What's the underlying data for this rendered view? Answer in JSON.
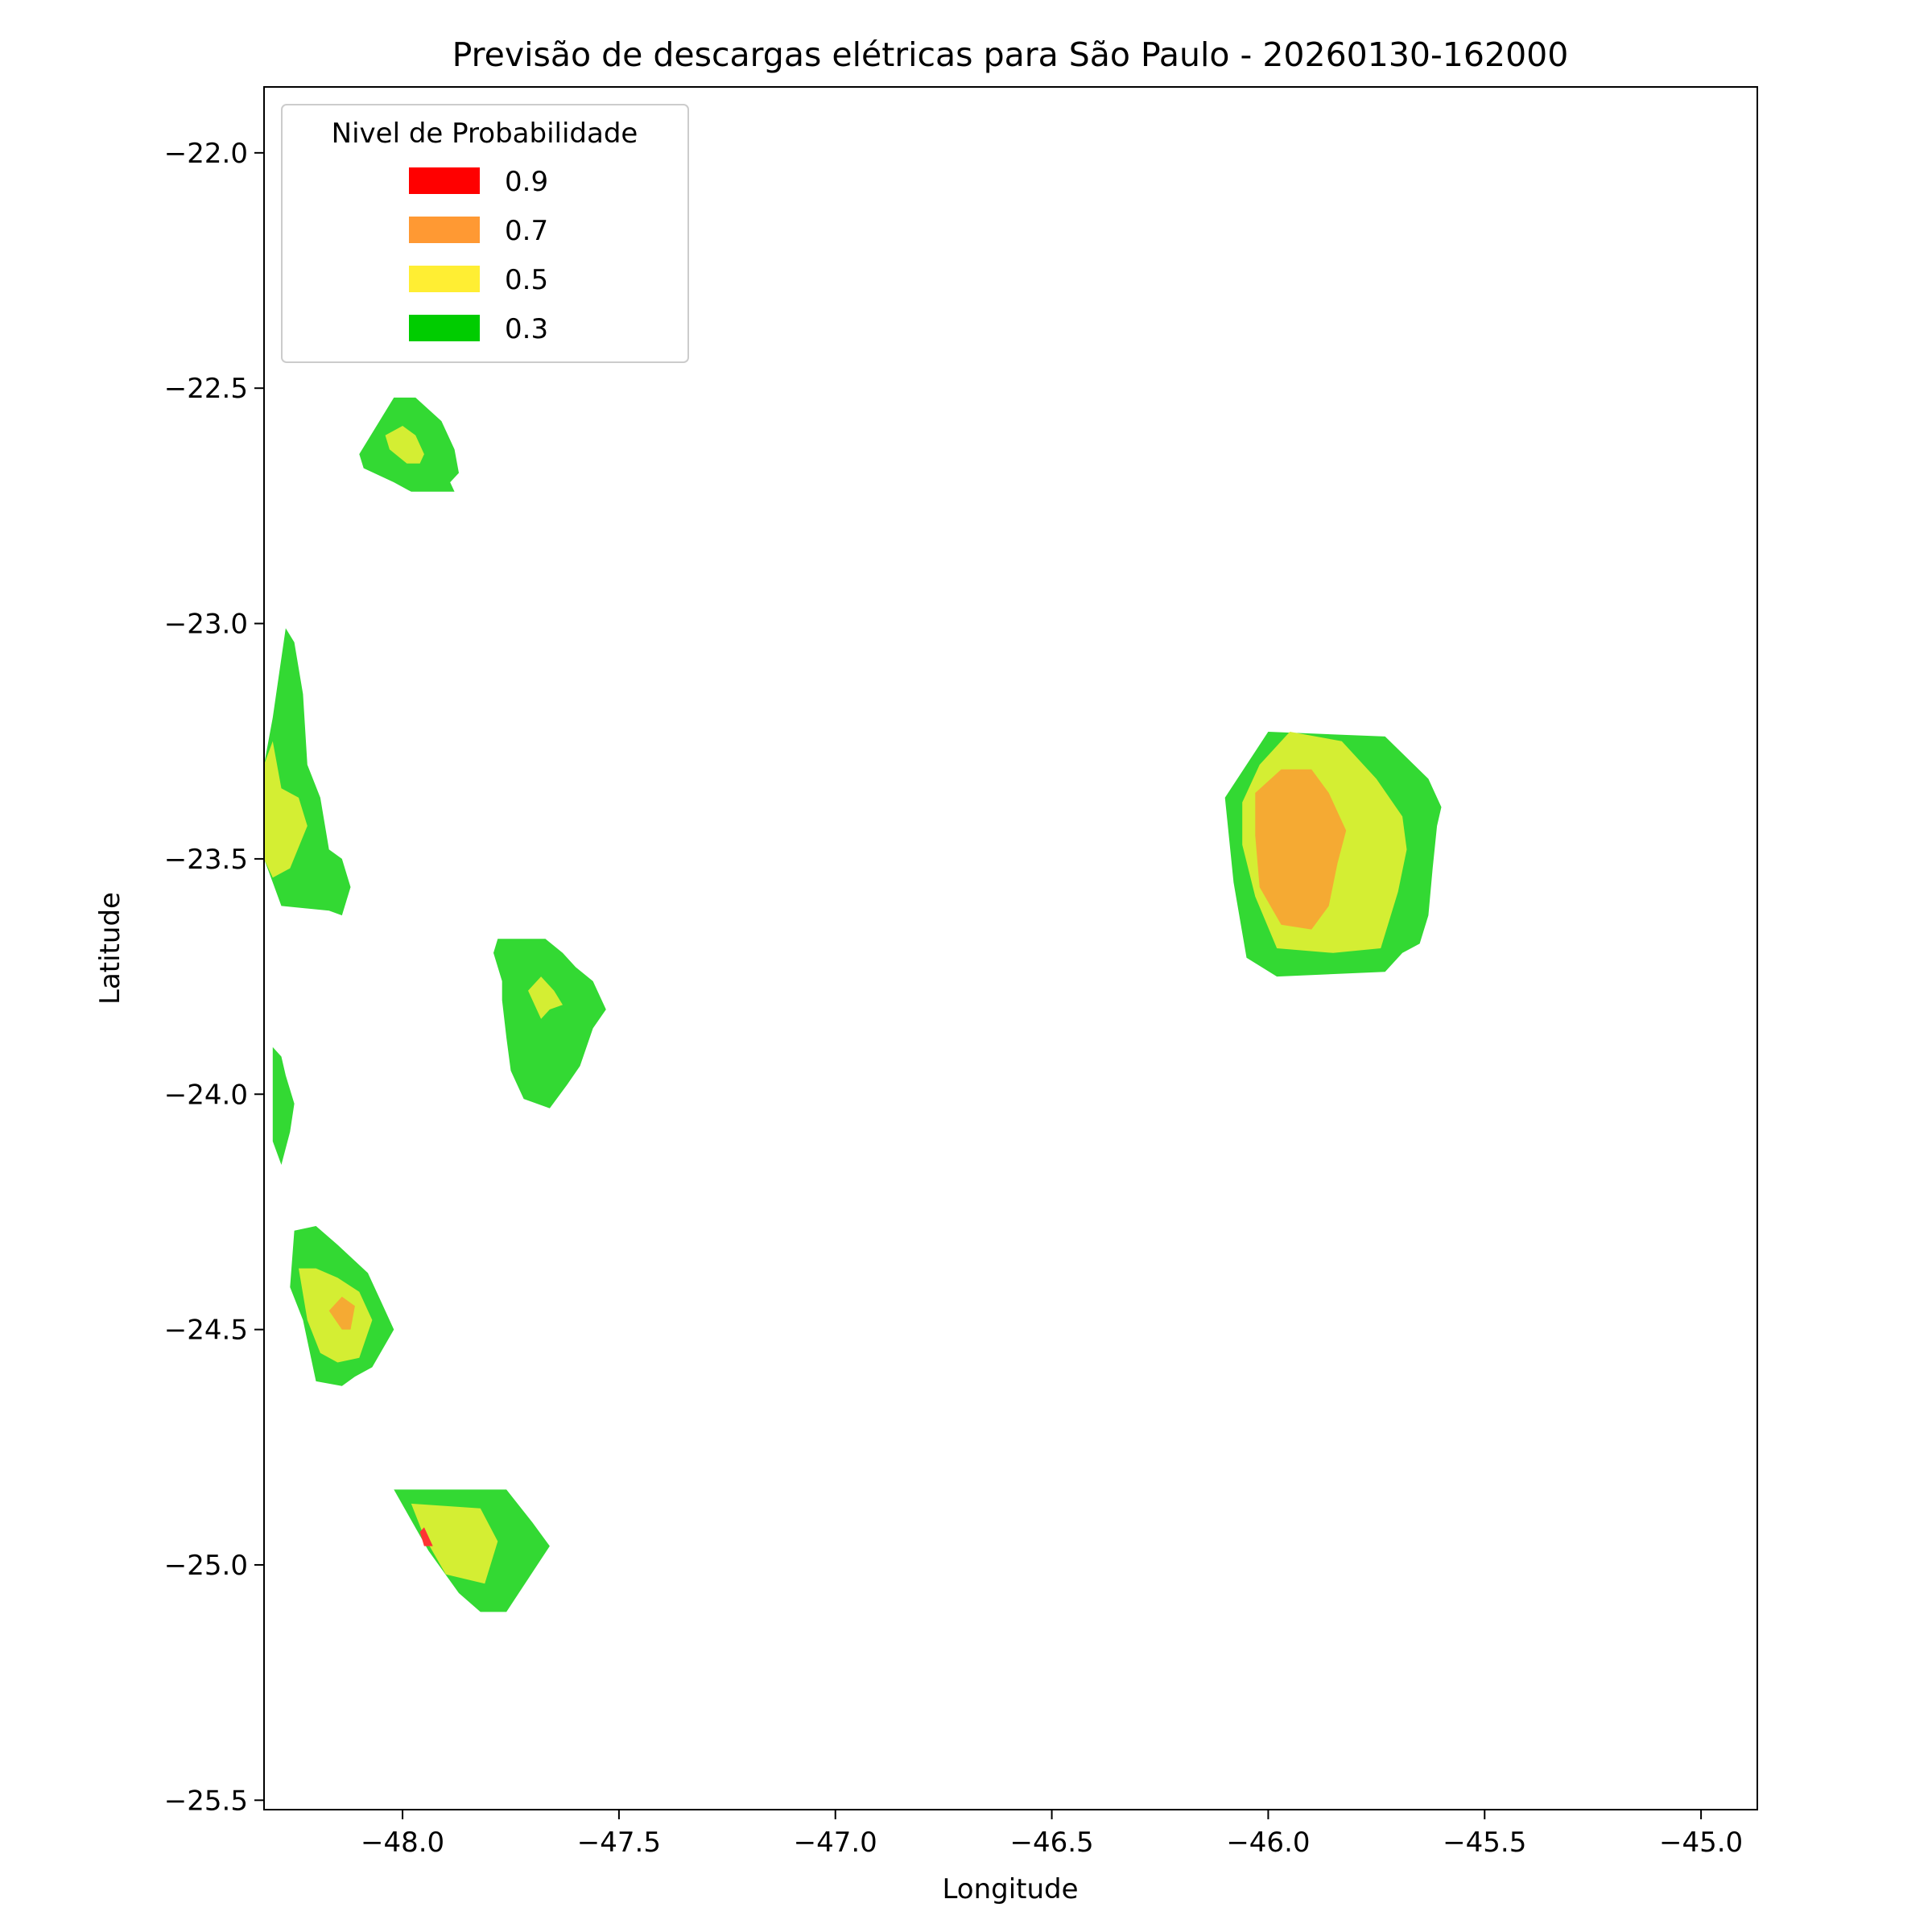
{
  "chart_data": {
    "type": "filled_contour",
    "title": "Previsão de descargas elétricas para São Paulo - 20260130-162000",
    "xlabel": "Longitude",
    "ylabel": "Latitude",
    "xlim": [
      -48.32,
      -44.87
    ],
    "ylim": [
      -25.52,
      -21.86
    ],
    "xticks": [
      -48.0,
      -47.5,
      -47.0,
      -46.5,
      -46.0,
      -45.5,
      -45.0
    ],
    "xtick_labels": [
      "−48.0",
      "−47.5",
      "−47.0",
      "−46.5",
      "−46.0",
      "−45.5",
      "−45.0"
    ],
    "yticks": [
      -22.0,
      -22.5,
      -23.0,
      -23.5,
      -24.0,
      -24.5,
      -25.0,
      -25.5
    ],
    "ytick_labels": [
      "−22.0",
      "−22.5",
      "−23.0",
      "−23.5",
      "−24.0",
      "−24.5",
      "−25.0",
      "−25.5"
    ],
    "grid": false,
    "legend": {
      "title": "Nivel de Probabilidade",
      "position": "top-left",
      "entries": [
        {
          "label": "0.9",
          "color": "#ff0000"
        },
        {
          "label": "0.7",
          "color": "#ff9933"
        },
        {
          "label": "0.5",
          "color": "#ffee33"
        },
        {
          "label": "0.3",
          "color": "#00cc00"
        }
      ]
    },
    "region_colors": {
      "0.3": "#33d933",
      "0.5": "#d4ee33",
      "0.7": "#f5aa33",
      "0.9": "#ff3333"
    },
    "regions": [
      {
        "name": "cell-1",
        "level": "0.3",
        "points": [
          [
            -48.1,
            -22.64
          ],
          [
            -48.02,
            -22.52
          ],
          [
            -47.97,
            -22.52
          ],
          [
            -47.91,
            -22.57
          ],
          [
            -47.88,
            -22.63
          ],
          [
            -47.87,
            -22.68
          ],
          [
            -47.89,
            -22.7
          ],
          [
            -47.88,
            -22.72
          ],
          [
            -47.98,
            -22.72
          ],
          [
            -48.02,
            -22.7
          ],
          [
            -48.09,
            -22.67
          ]
        ]
      },
      {
        "name": "cell-1",
        "level": "0.5",
        "points": [
          [
            -48.04,
            -22.6
          ],
          [
            -48.0,
            -22.58
          ],
          [
            -47.97,
            -22.6
          ],
          [
            -47.95,
            -22.64
          ],
          [
            -47.96,
            -22.66
          ],
          [
            -47.99,
            -22.66
          ],
          [
            -48.03,
            -22.63
          ]
        ]
      },
      {
        "name": "cell-2",
        "level": "0.3",
        "points": [
          [
            -48.3,
            -23.2
          ],
          [
            -48.27,
            -23.01
          ],
          [
            -48.25,
            -23.04
          ],
          [
            -48.23,
            -23.15
          ],
          [
            -48.22,
            -23.3
          ],
          [
            -48.19,
            -23.37
          ],
          [
            -48.17,
            -23.48
          ],
          [
            -48.14,
            -23.5
          ],
          [
            -48.12,
            -23.56
          ],
          [
            -48.14,
            -23.62
          ],
          [
            -48.17,
            -23.61
          ],
          [
            -48.28,
            -23.6
          ],
          [
            -48.3,
            -23.55
          ],
          [
            -48.32,
            -23.5
          ],
          [
            -48.32,
            -23.3
          ]
        ]
      },
      {
        "name": "cell-2",
        "level": "0.5",
        "points": [
          [
            -48.32,
            -23.3
          ],
          [
            -48.3,
            -23.25
          ],
          [
            -48.28,
            -23.35
          ],
          [
            -48.24,
            -23.37
          ],
          [
            -48.22,
            -23.43
          ],
          [
            -48.26,
            -23.52
          ],
          [
            -48.3,
            -23.54
          ],
          [
            -48.32,
            -23.5
          ]
        ]
      },
      {
        "name": "cell-3",
        "level": "0.3",
        "points": [
          [
            -47.79,
            -23.7
          ],
          [
            -47.78,
            -23.67
          ],
          [
            -47.67,
            -23.67
          ],
          [
            -47.63,
            -23.7
          ],
          [
            -47.6,
            -23.73
          ],
          [
            -47.56,
            -23.76
          ],
          [
            -47.53,
            -23.82
          ],
          [
            -47.56,
            -23.86
          ],
          [
            -47.59,
            -23.94
          ],
          [
            -47.62,
            -23.98
          ],
          [
            -47.66,
            -24.03
          ],
          [
            -47.72,
            -24.01
          ],
          [
            -47.75,
            -23.95
          ],
          [
            -47.76,
            -23.88
          ],
          [
            -47.77,
            -23.8
          ],
          [
            -47.77,
            -23.76
          ]
        ]
      },
      {
        "name": "cell-3",
        "level": "0.5",
        "points": [
          [
            -47.71,
            -23.78
          ],
          [
            -47.68,
            -23.75
          ],
          [
            -47.65,
            -23.78
          ],
          [
            -47.63,
            -23.81
          ],
          [
            -47.66,
            -23.82
          ],
          [
            -47.68,
            -23.84
          ]
        ]
      },
      {
        "name": "cell-4",
        "level": "0.3",
        "points": [
          [
            -48.3,
            -23.9
          ],
          [
            -48.28,
            -23.92
          ],
          [
            -48.27,
            -23.96
          ],
          [
            -48.25,
            -24.02
          ],
          [
            -48.26,
            -24.08
          ],
          [
            -48.28,
            -24.15
          ],
          [
            -48.3,
            -24.1
          ]
        ]
      },
      {
        "name": "cell-5",
        "level": "0.3",
        "points": [
          [
            -48.25,
            -24.29
          ],
          [
            -48.2,
            -24.28
          ],
          [
            -48.15,
            -24.32
          ],
          [
            -48.08,
            -24.38
          ],
          [
            -48.05,
            -24.44
          ],
          [
            -48.02,
            -24.5
          ],
          [
            -48.07,
            -24.58
          ],
          [
            -48.11,
            -24.6
          ],
          [
            -48.14,
            -24.62
          ],
          [
            -48.2,
            -24.61
          ],
          [
            -48.23,
            -24.48
          ],
          [
            -48.26,
            -24.41
          ]
        ]
      },
      {
        "name": "cell-5",
        "level": "0.5",
        "points": [
          [
            -48.24,
            -24.37
          ],
          [
            -48.2,
            -24.37
          ],
          [
            -48.15,
            -24.39
          ],
          [
            -48.1,
            -24.42
          ],
          [
            -48.07,
            -24.48
          ],
          [
            -48.1,
            -24.56
          ],
          [
            -48.15,
            -24.57
          ],
          [
            -48.19,
            -24.55
          ],
          [
            -48.22,
            -24.48
          ]
        ]
      },
      {
        "name": "cell-5",
        "level": "0.7",
        "points": [
          [
            -48.17,
            -24.46
          ],
          [
            -48.14,
            -24.43
          ],
          [
            -48.11,
            -24.45
          ],
          [
            -48.12,
            -24.5
          ],
          [
            -48.14,
            -24.5
          ]
        ]
      },
      {
        "name": "cell-6",
        "level": "0.3",
        "points": [
          [
            -48.02,
            -24.84
          ],
          [
            -47.76,
            -24.84
          ],
          [
            -47.7,
            -24.91
          ],
          [
            -47.66,
            -24.96
          ],
          [
            -47.76,
            -25.1
          ],
          [
            -47.82,
            -25.1
          ],
          [
            -47.87,
            -25.06
          ],
          [
            -47.94,
            -24.97
          ]
        ]
      },
      {
        "name": "cell-6",
        "level": "0.5",
        "points": [
          [
            -47.98,
            -24.87
          ],
          [
            -47.82,
            -24.88
          ],
          [
            -47.78,
            -24.95
          ],
          [
            -47.81,
            -25.04
          ],
          [
            -47.9,
            -25.02
          ],
          [
            -47.95,
            -24.94
          ]
        ]
      },
      {
        "name": "cell-6",
        "level": "0.9",
        "points": [
          [
            -47.96,
            -24.93
          ],
          [
            -47.95,
            -24.92
          ],
          [
            -47.93,
            -24.96
          ],
          [
            -47.95,
            -24.96
          ]
        ]
      },
      {
        "name": "cell-7",
        "level": "0.3",
        "points": [
          [
            -46.1,
            -23.37
          ],
          [
            -46.0,
            -23.23
          ],
          [
            -45.73,
            -23.24
          ],
          [
            -45.63,
            -23.33
          ],
          [
            -45.6,
            -23.39
          ],
          [
            -45.61,
            -23.43
          ],
          [
            -45.62,
            -23.52
          ],
          [
            -45.63,
            -23.62
          ],
          [
            -45.65,
            -23.68
          ],
          [
            -45.69,
            -23.7
          ],
          [
            -45.73,
            -23.74
          ],
          [
            -45.98,
            -23.75
          ],
          [
            -46.05,
            -23.71
          ],
          [
            -46.08,
            -23.55
          ]
        ]
      },
      {
        "name": "cell-7",
        "level": "0.5",
        "points": [
          [
            -46.06,
            -23.38
          ],
          [
            -46.02,
            -23.3
          ],
          [
            -45.95,
            -23.23
          ],
          [
            -45.83,
            -23.25
          ],
          [
            -45.75,
            -23.33
          ],
          [
            -45.69,
            -23.41
          ],
          [
            -45.68,
            -23.48
          ],
          [
            -45.7,
            -23.57
          ],
          [
            -45.74,
            -23.69
          ],
          [
            -45.85,
            -23.7
          ],
          [
            -45.98,
            -23.69
          ],
          [
            -46.03,
            -23.58
          ],
          [
            -46.06,
            -23.47
          ]
        ]
      },
      {
        "name": "cell-7",
        "level": "0.7",
        "points": [
          [
            -46.03,
            -23.36
          ],
          [
            -45.97,
            -23.31
          ],
          [
            -45.9,
            -23.31
          ],
          [
            -45.86,
            -23.36
          ],
          [
            -45.82,
            -23.44
          ],
          [
            -45.84,
            -23.51
          ],
          [
            -45.86,
            -23.6
          ],
          [
            -45.9,
            -23.65
          ],
          [
            -45.97,
            -23.64
          ],
          [
            -46.02,
            -23.56
          ],
          [
            -46.03,
            -23.45
          ]
        ]
      }
    ]
  }
}
